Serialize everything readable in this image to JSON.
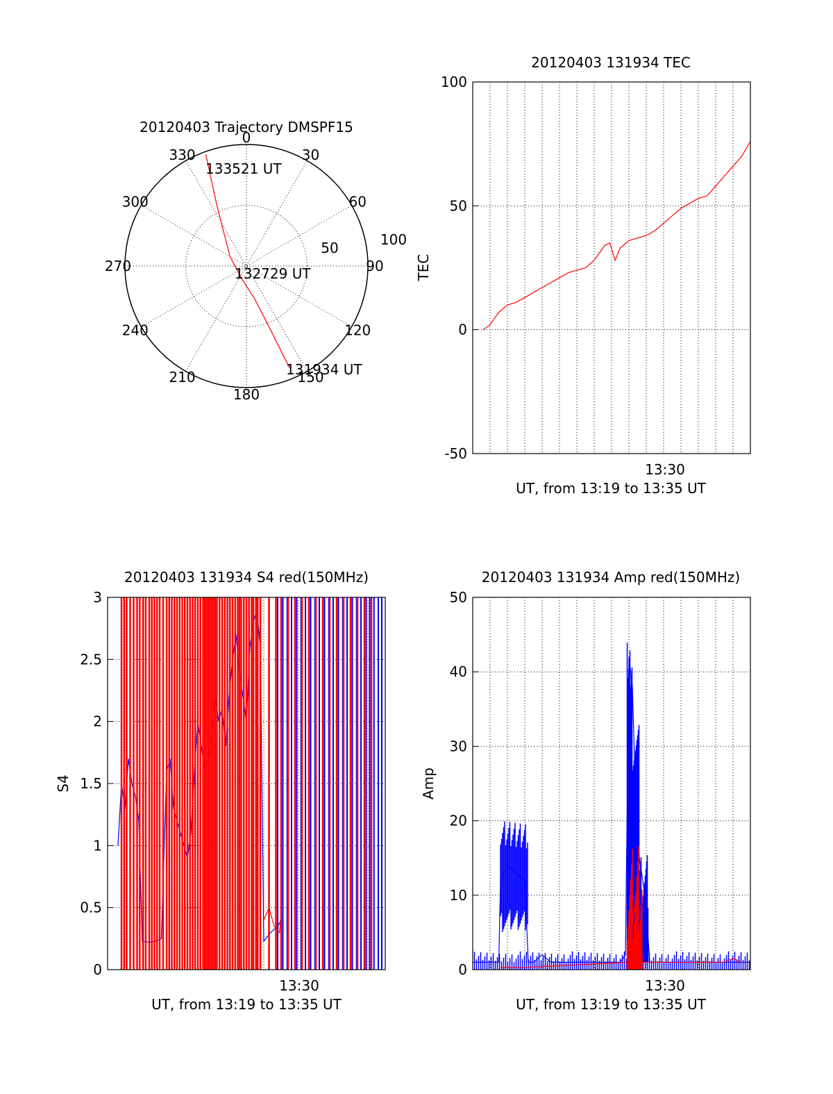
{
  "colors": {
    "red": "#ff0000",
    "blue": "#0000ff",
    "axis": "#000000",
    "background": "#ffffff"
  },
  "chart_data": [
    {
      "id": "trajectory",
      "type": "scatter",
      "title": "20120403 Trajectory DMSPF15",
      "projection": "polar (azimuth clockwise from north, elevation radial; center = 90)",
      "angle_labels": [
        "0",
        "30",
        "60",
        "90",
        "120",
        "150",
        "180",
        "210",
        "240",
        "270",
        "300",
        "330"
      ],
      "radial_labels": [
        "50",
        "100"
      ],
      "grid": true,
      "series": [
        {
          "color": "#ff0000",
          "points": [
            {
              "azimuth": 340,
              "zenith_angle": 88
            },
            {
              "azimuth": 338,
              "zenith_angle": 70
            },
            {
              "azimuth": 334,
              "zenith_angle": 50
            },
            {
              "azimuth": 326,
              "zenith_angle": 30
            },
            {
              "azimuth": 300,
              "zenith_angle": 14
            },
            {
              "azimuth": 200,
              "zenith_angle": 10
            },
            {
              "azimuth": 166,
              "zenith_angle": 25
            },
            {
              "azimuth": 160,
              "zenith_angle": 45
            },
            {
              "azimuth": 158,
              "zenith_angle": 65
            },
            {
              "azimuth": 157,
              "zenith_angle": 82
            }
          ]
        }
      ],
      "annotations": [
        "133521 UT",
        "132729 UT",
        "131934 UT"
      ]
    },
    {
      "id": "tec",
      "type": "line",
      "title": "20120403 131934 TEC",
      "xlabel": "UT, from 13:19 to 13:35 UT",
      "ylabel": "TEC",
      "x_tick_labels": [
        "13:30"
      ],
      "xlim": [
        0,
        16
      ],
      "ylim": [
        -50,
        100
      ],
      "y_ticks": [
        "100",
        "50",
        "0",
        "-50"
      ],
      "grid": true,
      "series": [
        {
          "color": "#ff0000",
          "x": [
            0.6,
            1.0,
            1.5,
            2.0,
            2.5,
            3.0,
            3.5,
            4.0,
            4.5,
            5.0,
            5.5,
            6.0,
            6.5,
            7.0,
            7.3,
            7.6,
            7.9,
            8.2,
            8.5,
            9.0,
            9.5,
            10.0,
            10.5,
            11.0,
            11.5,
            12.0,
            12.5,
            13.0,
            13.5,
            14.0,
            14.5,
            15.0,
            15.5,
            16.0
          ],
          "y": [
            0,
            2,
            7,
            10,
            11,
            13,
            15,
            17,
            19,
            21,
            23,
            24,
            25,
            28,
            31,
            34,
            35,
            28,
            33,
            36,
            37,
            38,
            40,
            43,
            46,
            49,
            51,
            53,
            54,
            58,
            62,
            66,
            70,
            76
          ]
        }
      ]
    },
    {
      "id": "s4",
      "type": "line",
      "title": "20120403 131934 S4 red(150MHz)",
      "xlabel": "UT, from 13:19 to 13:35 UT",
      "ylabel": "S4",
      "x_tick_labels": [
        "13:30"
      ],
      "xlim": [
        0,
        16
      ],
      "ylim": [
        0,
        3
      ],
      "y_ticks": [
        "3",
        "2.5",
        "2",
        "1.5",
        "1",
        "0.5",
        "0"
      ],
      "grid": true,
      "series": [
        {
          "color": "#0000ff",
          "x": [
            0.6,
            0.8,
            1.0,
            1.2,
            1.4,
            1.6,
            1.8,
            2.0,
            2.4,
            2.8,
            3.1,
            3.4,
            3.6,
            3.8,
            4.0,
            4.2,
            4.4,
            4.6,
            4.8,
            5.0,
            5.2,
            5.4,
            5.6,
            5.8,
            6.0,
            6.2,
            6.4,
            6.6,
            6.8,
            7.0,
            7.2,
            7.4,
            7.6,
            7.8,
            8.0,
            8.2,
            8.4,
            8.6,
            8.8,
            9.0,
            9.4,
            9.8,
            10.0
          ],
          "y": [
            1.0,
            1.5,
            1.3,
            1.7,
            1.5,
            1.4,
            1.2,
            0.23,
            0.22,
            0.23,
            0.25,
            1.6,
            1.7,
            1.3,
            1.2,
            1.1,
            1.0,
            0.9,
            1.1,
            1.6,
            2.0,
            1.8,
            1.6,
            1.7,
            1.9,
            2.2,
            2.0,
            2.1,
            1.8,
            2.2,
            2.5,
            2.7,
            2.4,
            2.2,
            2.0,
            2.6,
            2.8,
            2.9,
            2.6,
            0.23,
            0.3,
            0.35,
            0.4
          ]
        },
        {
          "color": "#ff0000",
          "x": [
            9.0,
            9.3,
            9.6,
            9.9,
            10.0
          ],
          "y": [
            0.4,
            0.5,
            0.35,
            0.3,
            0.45
          ]
        }
      ]
    },
    {
      "id": "amp",
      "type": "line",
      "title": "20120403 131934 Amp red(150MHz)",
      "xlabel": "UT, from 13:19 to 13:35 UT",
      "ylabel": "Amp",
      "x_tick_labels": [
        "13:30"
      ],
      "xlim": [
        0,
        16
      ],
      "ylim": [
        0,
        50
      ],
      "y_ticks": [
        "50",
        "40",
        "30",
        "20",
        "10",
        "0"
      ],
      "grid": true,
      "series": [
        {
          "color": "#0000ff",
          "x": [
            0.0,
            0.5,
            1.0,
            1.5,
            1.6,
            2.0,
            2.5,
            3.0,
            3.2,
            3.5,
            4.0,
            4.5,
            5.0,
            6.0,
            7.0,
            8.0,
            8.5,
            8.8,
            9.0,
            9.2,
            9.4,
            9.6,
            9.8,
            10.0,
            10.2,
            10.5,
            11.0,
            12.0,
            13.0,
            14.0,
            15.0,
            16.0
          ],
          "y": [
            1,
            1,
            1,
            1,
            12,
            14,
            13,
            12,
            1,
            1,
            2,
            1,
            1,
            1,
            1,
            1,
            1,
            2,
            42,
            38,
            22,
            15,
            12,
            8,
            1,
            1,
            1,
            1,
            1,
            1,
            1,
            1
          ]
        },
        {
          "color": "#ff0000",
          "x": [
            1.6,
            2.0,
            2.5,
            3.0,
            9.0,
            9.2,
            9.4,
            9.6,
            9.8,
            14.5,
            15.0,
            15.5
          ],
          "y": [
            0.3,
            0.3,
            0.3,
            0.3,
            1,
            6,
            10,
            4,
            1,
            1,
            1.5,
            1
          ]
        }
      ]
    }
  ]
}
